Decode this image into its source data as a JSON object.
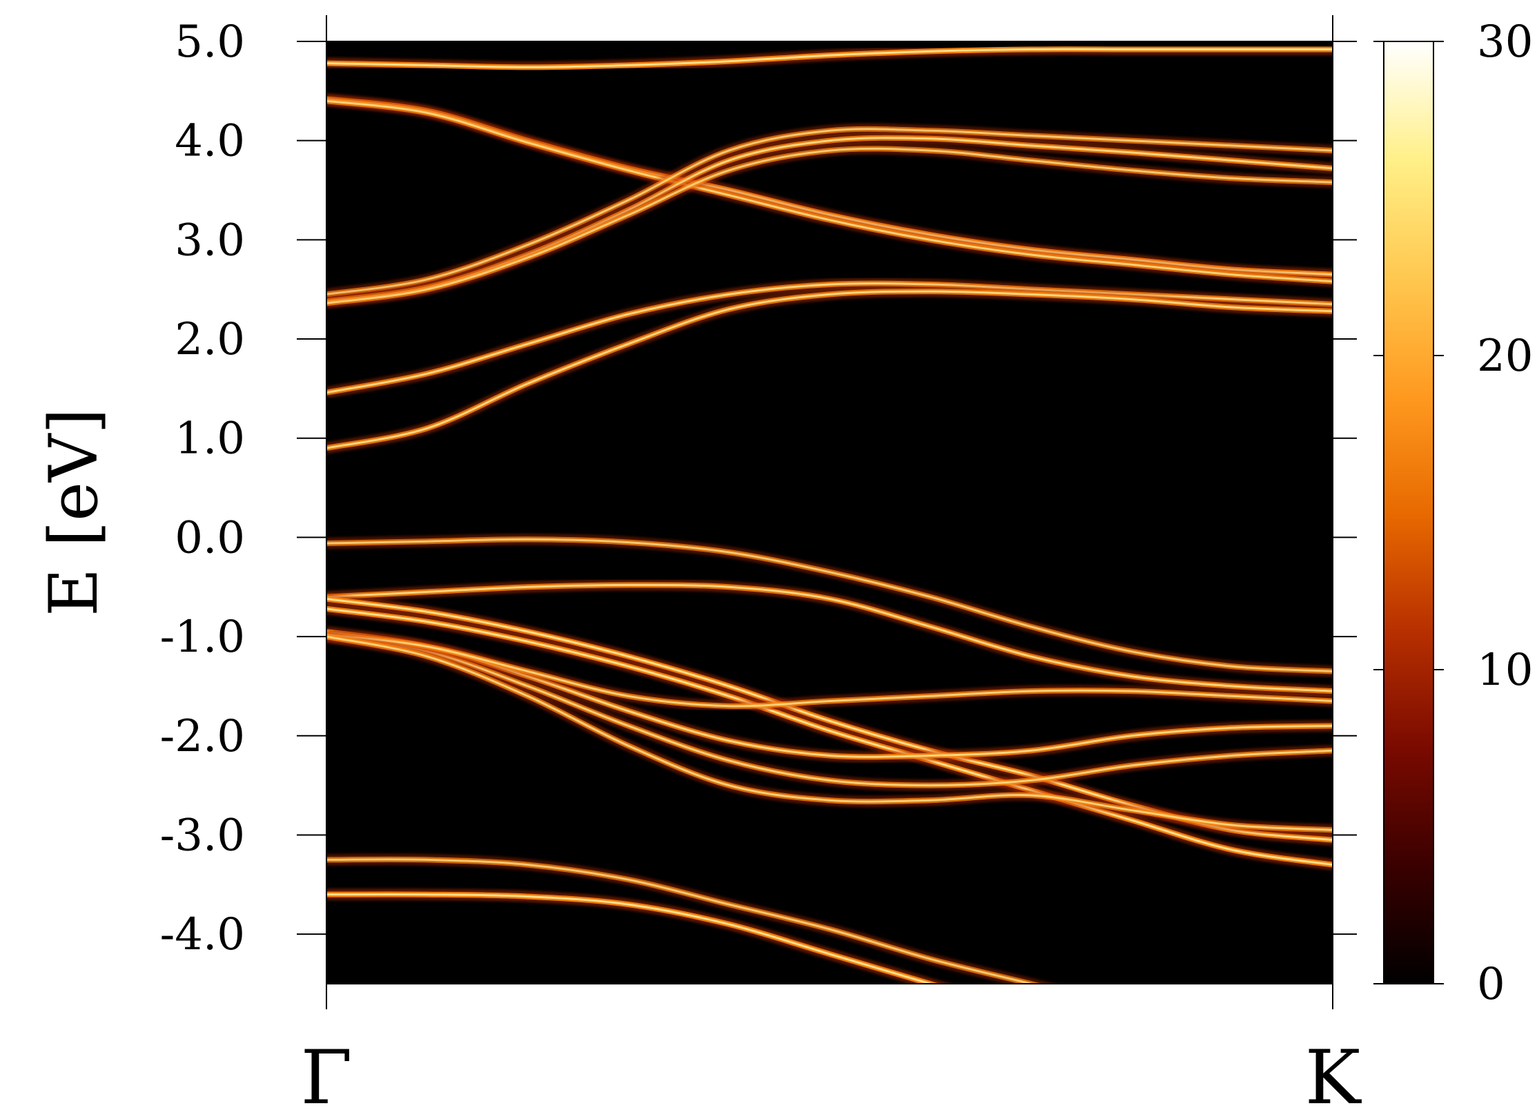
{
  "chart_data": {
    "type": "heatmap",
    "title": "",
    "xlabel": "",
    "ylabel": "E [eV]",
    "x_ticks": [
      "Γ",
      "K"
    ],
    "ylim": [
      -4.5,
      5.0
    ],
    "y_ticks": [
      5.0,
      4.0,
      3.0,
      2.0,
      1.0,
      0.0,
      -1.0,
      -2.0,
      -3.0,
      -4.0
    ],
    "y_tick_labels": [
      "5.0",
      "4.0",
      "3.0",
      "2.0",
      "1.0",
      "0.0",
      "-1.0",
      "-2.0",
      "-3.0",
      "-4.0"
    ],
    "colorbar": {
      "range": [
        0,
        30
      ],
      "ticks": [
        0,
        10,
        20,
        30
      ],
      "tick_labels": [
        "0",
        "10",
        "20",
        "30"
      ],
      "colormap": [
        "#000000",
        "#3a0000",
        "#7a0a00",
        "#b83000",
        "#e86a00",
        "#ff9a20",
        "#ffc850",
        "#fff088",
        "#ffffff"
      ]
    },
    "grid": false,
    "k_positions": [
      0,
      0.1,
      0.2,
      0.3,
      0.4,
      0.5,
      0.6,
      0.7,
      0.8,
      0.9,
      1.0
    ],
    "bands": [
      {
        "energies": [
          4.78,
          4.76,
          4.74,
          4.76,
          4.8,
          4.86,
          4.9,
          4.92,
          4.92,
          4.92,
          4.92
        ],
        "intensity": 1.0
      },
      {
        "energies": [
          4.42,
          4.3,
          4.0,
          3.72,
          3.5,
          3.25,
          3.05,
          2.9,
          2.8,
          2.7,
          2.65
        ],
        "intensity": 1.0
      },
      {
        "energies": [
          4.4,
          4.28,
          3.98,
          3.7,
          3.45,
          3.2,
          3.0,
          2.85,
          2.75,
          2.65,
          2.58
        ],
        "intensity": 0.85
      },
      {
        "energies": [
          2.45,
          2.6,
          2.95,
          3.4,
          3.9,
          4.1,
          4.1,
          4.05,
          4.0,
          3.95,
          3.9
        ],
        "intensity": 0.8
      },
      {
        "energies": [
          2.38,
          2.52,
          2.85,
          3.3,
          3.8,
          4.0,
          4.02,
          3.95,
          3.88,
          3.8,
          3.72
        ],
        "intensity": 0.9
      },
      {
        "energies": [
          2.36,
          2.5,
          2.82,
          3.25,
          3.7,
          3.9,
          3.9,
          3.8,
          3.7,
          3.62,
          3.58
        ],
        "intensity": 0.8
      },
      {
        "energies": [
          1.46,
          1.65,
          1.95,
          2.25,
          2.45,
          2.55,
          2.55,
          2.5,
          2.45,
          2.4,
          2.35
        ],
        "intensity": 0.9
      },
      {
        "energies": [
          0.9,
          1.1,
          1.55,
          1.95,
          2.3,
          2.45,
          2.48,
          2.45,
          2.4,
          2.32,
          2.28
        ],
        "intensity": 0.9
      },
      {
        "energies": [
          -0.06,
          -0.04,
          -0.02,
          -0.05,
          -0.15,
          -0.35,
          -0.6,
          -0.9,
          -1.15,
          -1.3,
          -1.35
        ],
        "intensity": 0.8
      },
      {
        "energies": [
          -0.6,
          -0.55,
          -0.5,
          -0.48,
          -0.5,
          -0.62,
          -0.9,
          -1.2,
          -1.4,
          -1.5,
          -1.55
        ],
        "intensity": 0.9
      },
      {
        "energies": [
          -0.62,
          -0.75,
          -0.95,
          -1.2,
          -1.5,
          -1.85,
          -2.15,
          -2.4,
          -2.7,
          -2.95,
          -3.05
        ],
        "intensity": 1.0
      },
      {
        "energies": [
          -0.72,
          -0.85,
          -1.05,
          -1.3,
          -1.6,
          -1.95,
          -2.25,
          -2.55,
          -2.85,
          -3.15,
          -3.3
        ],
        "intensity": 1.0
      },
      {
        "energies": [
          -0.95,
          -1.1,
          -1.4,
          -1.75,
          -2.05,
          -2.2,
          -2.2,
          -2.15,
          -2.0,
          -1.92,
          -1.9
        ],
        "intensity": 0.9
      },
      {
        "energies": [
          -1.0,
          -1.15,
          -1.5,
          -1.9,
          -2.25,
          -2.45,
          -2.5,
          -2.45,
          -2.3,
          -2.2,
          -2.15
        ],
        "intensity": 0.85
      },
      {
        "energies": [
          -0.98,
          -1.1,
          -1.35,
          -1.6,
          -1.7,
          -1.65,
          -1.6,
          -1.55,
          -1.55,
          -1.6,
          -1.65
        ],
        "intensity": 0.85
      },
      {
        "energies": [
          -1.0,
          -1.2,
          -1.6,
          -2.1,
          -2.5,
          -2.65,
          -2.65,
          -2.6,
          -2.75,
          -2.9,
          -2.95
        ],
        "intensity": 0.85
      },
      {
        "energies": [
          -3.25,
          -3.25,
          -3.3,
          -3.45,
          -3.7,
          -3.95,
          -4.25,
          -4.5,
          -4.75,
          -5.0,
          -5.2
        ],
        "intensity": 0.8
      },
      {
        "energies": [
          -3.6,
          -3.6,
          -3.62,
          -3.7,
          -3.9,
          -4.2,
          -4.5,
          -4.8,
          -5.1,
          -5.4,
          -5.7
        ],
        "intensity": 1.0
      }
    ]
  }
}
